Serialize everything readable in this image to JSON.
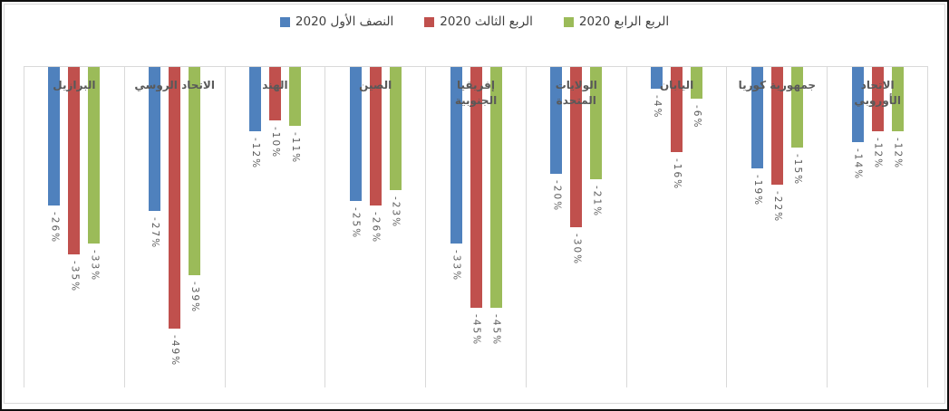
{
  "chart_data": {
    "type": "bar",
    "orientation": "vertical-negative",
    "title": "",
    "xlabel": "",
    "ylabel": "",
    "ylim": [
      -60,
      0
    ],
    "gridlines": "vertical-category-separators",
    "legend_position": "top-center",
    "value_suffix": "%",
    "categories": [
      "البرازيل",
      "الاتحاد الروسي",
      "الهند",
      "الصين",
      "إفريقيا الجنوبية",
      "الولايات المتحدة",
      "اليابان",
      "جمهورية كوريا",
      "الاتحاد الأوروبي"
    ],
    "series": [
      {
        "name": "النصف الأول 2020",
        "color": "#4F81BD",
        "values": [
          -26,
          -27,
          -12,
          -25,
          -33,
          -20,
          -4,
          -19,
          -14
        ]
      },
      {
        "name": "الربع الثالث 2020",
        "color": "#C0504D",
        "values": [
          -35,
          -49,
          -10,
          -26,
          -45,
          -30,
          -16,
          -22,
          -12
        ]
      },
      {
        "name": "الربع الرابع 2020",
        "color": "#9BBB59",
        "values": [
          -33,
          -39,
          -11,
          -23,
          -45,
          -21,
          -6,
          -15,
          -12
        ]
      }
    ],
    "colors": {
      "gridline": "#d9d9d9",
      "label_text": "#595959",
      "legend_text": "#404040"
    }
  }
}
